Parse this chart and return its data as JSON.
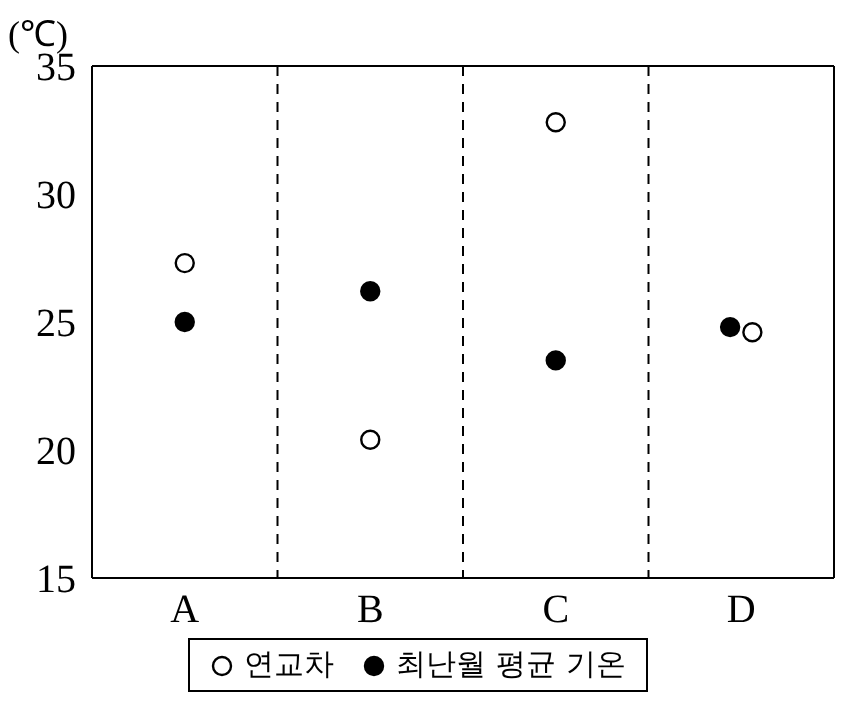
{
  "chart_data": {
    "type": "scatter",
    "ylabel": "(℃)",
    "categories": [
      "A",
      "B",
      "C",
      "D"
    ],
    "series": [
      {
        "name": "연교차",
        "color": "#ffffff",
        "values": [
          27.3,
          20.4,
          32.8,
          24.6
        ]
      },
      {
        "name": "최난월 평균 기온",
        "color": "#000000",
        "values": [
          25.0,
          26.2,
          23.5,
          24.8
        ]
      }
    ],
    "ylim": [
      15,
      35
    ],
    "yticks": [
      15,
      20,
      25,
      30,
      35
    ],
    "grid": true,
    "legend": "bottom",
    "marker": "circle"
  }
}
